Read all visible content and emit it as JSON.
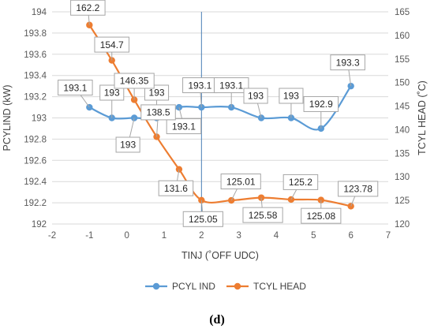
{
  "panel_label": "(d)",
  "chart_data": {
    "type": "line",
    "xlabel": "TINJ (˚OFF UDC)",
    "ylabel": "PCYLIND (kW)",
    "y2label": "TCYL HEAD (˚C)",
    "xlim": [
      -2,
      7
    ],
    "xticks": [
      -2,
      -1,
      0,
      1,
      2,
      3,
      4,
      5,
      6,
      7
    ],
    "ylim": [
      192,
      194
    ],
    "yticks": [
      "192",
      "192.2",
      "192.4",
      "192.6",
      "192.8",
      "193",
      "193.2",
      "193.4",
      "193.6",
      "193.8",
      "194"
    ],
    "y2lim": [
      120,
      165
    ],
    "y2ticks": [
      "120",
      "125",
      "130",
      "135",
      "140",
      "145",
      "150",
      "155",
      "160",
      "165"
    ],
    "grid": "horizontal",
    "reference_line_x": 2,
    "legend_position": "bottom",
    "series": [
      {
        "name": "PCYL IND",
        "axis": "left",
        "color": "#5B9BD5",
        "x": [
          -1,
          -0.4,
          0.2,
          0.8,
          1.4,
          2,
          2.8,
          3.6,
          4.4,
          5.2,
          6
        ],
        "y": [
          193.1,
          193,
          193,
          193,
          193.1,
          193.1,
          193.1,
          193,
          193,
          192.9,
          193.3
        ],
        "labels": [
          "193.1",
          "193",
          "193",
          "193",
          "193.1",
          "193.1",
          "193.1",
          "193",
          "193",
          "192.9",
          "193.3"
        ]
      },
      {
        "name": "TCYL HEAD",
        "axis": "right",
        "color": "#ED7D31",
        "x": [
          -1,
          -0.4,
          0.2,
          0.8,
          1.4,
          2,
          2.8,
          3.6,
          4.4,
          5.2,
          6
        ],
        "y": [
          162.2,
          154.7,
          146.35,
          138.5,
          131.6,
          125.05,
          125.01,
          125.58,
          125.2,
          125.08,
          123.78
        ],
        "labels": [
          "162.2",
          "154.7",
          "146.35",
          "138.5",
          "131.6",
          "125.05",
          "125.01",
          "125.58",
          "125.2",
          "125.08",
          "123.78"
        ]
      }
    ]
  }
}
